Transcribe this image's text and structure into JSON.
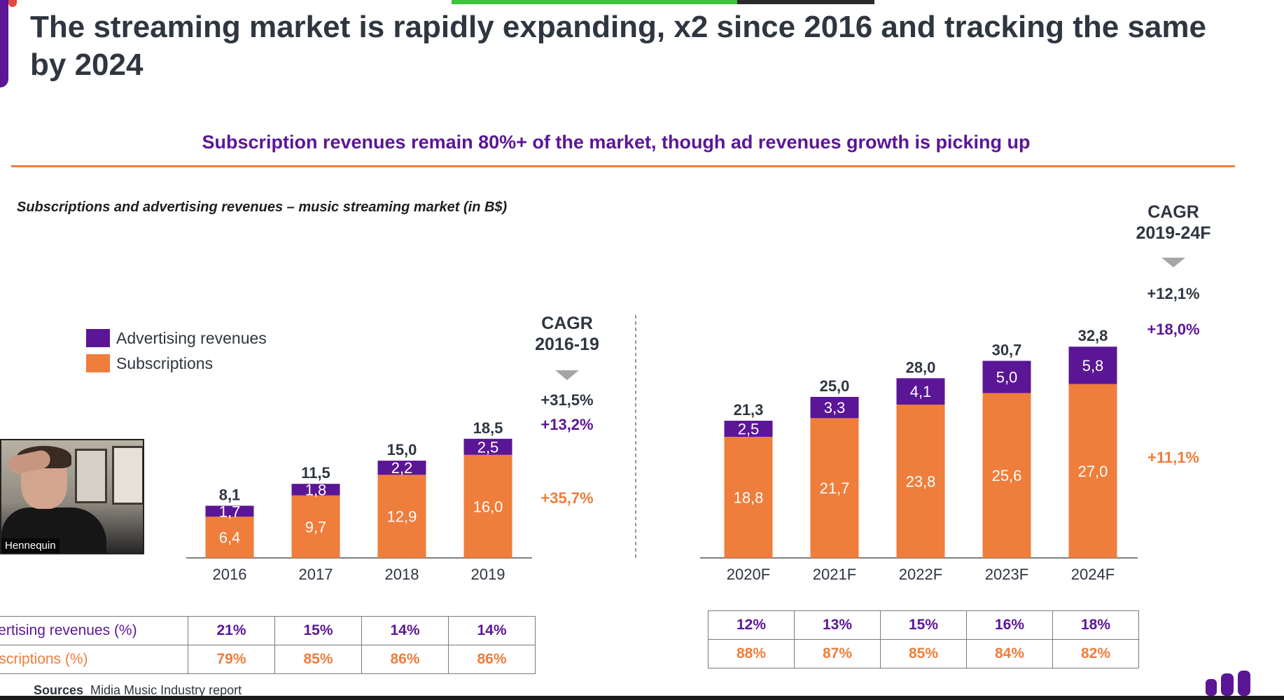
{
  "title": "The streaming market is rapidly expanding, x2 since 2016 and tracking the same by 2024",
  "subtitle": "Subscription revenues remain 80%+ of the market, though ad revenues growth is picking up",
  "caption": "Subscriptions and advertising revenues – music streaming market (in B$)",
  "colors": {
    "advertising": "#5b1696",
    "subscriptions": "#ef7d3b",
    "accent_rule": "#ef7d3b"
  },
  "presenter": {
    "name": "Hennequin"
  },
  "chart_data": {
    "type": "bar",
    "stacked": true,
    "categories": [
      "2016",
      "2017",
      "2018",
      "2019",
      "2020F",
      "2021F",
      "2022F",
      "2023F",
      "2024F"
    ],
    "series": [
      {
        "name": "Subscriptions",
        "values": [
          6.4,
          9.7,
          12.9,
          16.0,
          18.8,
          21.7,
          23.8,
          25.6,
          27.0
        ],
        "labels": [
          "6,4",
          "9,7",
          "12,9",
          "16,0",
          "18,8",
          "21,7",
          "23,8",
          "25,6",
          "27,0"
        ]
      },
      {
        "name": "Advertising revenues",
        "values": [
          1.7,
          1.8,
          2.2,
          2.5,
          2.5,
          3.3,
          4.1,
          5.0,
          5.8
        ],
        "labels": [
          "1,7",
          "1,8",
          "2,2",
          "2,5",
          "2,5",
          "3,3",
          "4,1",
          "5,0",
          "5,8"
        ]
      }
    ],
    "totals": [
      "8,1",
      "11,5",
      "15,0",
      "18,5",
      "21,3",
      "25,0",
      "28,0",
      "30,7",
      "32,8"
    ],
    "legend": [
      "Advertising revenues",
      "Subscriptions"
    ],
    "cagr_groups": [
      {
        "title_line1": "CAGR",
        "title_line2": "2016-19",
        "total": "+31,5%",
        "advertising": "+13,2%",
        "subscriptions": "+35,7%"
      },
      {
        "title_line1": "CAGR",
        "title_line2": "2019-24F",
        "total": "+12,1%",
        "advertising": "+18,0%",
        "subscriptions": "+11,1%"
      }
    ],
    "share_table": {
      "row_labels": [
        "Advertising revenues (%)",
        "Subscriptions (%)"
      ],
      "historical": {
        "advertising": [
          "21%",
          "15%",
          "14%",
          "14%"
        ],
        "subscriptions": [
          "79%",
          "85%",
          "86%",
          "86%"
        ]
      },
      "forecast": {
        "advertising": [
          "12%",
          "13%",
          "15%",
          "16%",
          "18%"
        ],
        "subscriptions": [
          "88%",
          "87%",
          "85%",
          "84%",
          "82%"
        ]
      }
    }
  },
  "sources": {
    "label": "Sources",
    "text": "Midia Music Industry report"
  }
}
